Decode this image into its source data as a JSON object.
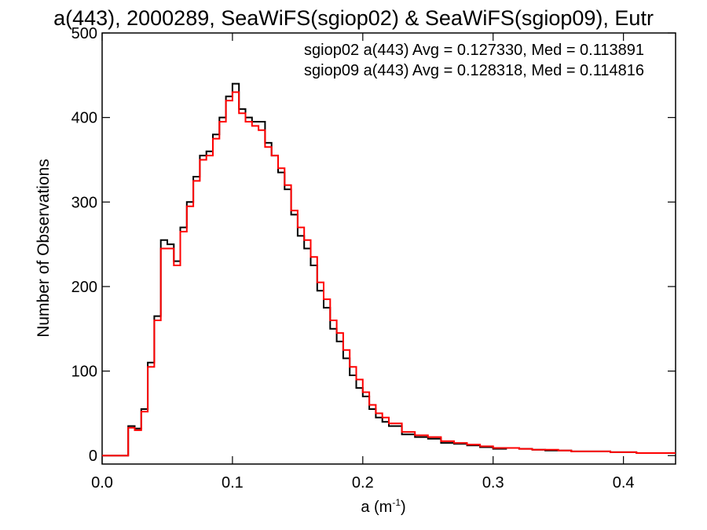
{
  "chart_data": {
    "type": "line",
    "title": "a(443), 2000289, SeaWiFS(sgiop02) & SeaWiFS(sgiop09), Eutr",
    "xlabel": "a (m",
    "xlabel_superscript": "-1",
    "xlabel_suffix": ")",
    "ylabel": "Number of Observations",
    "xlim": [
      0.0,
      0.44
    ],
    "ylim": [
      -10,
      500
    ],
    "xticks": [
      0.0,
      0.1,
      0.2,
      0.3,
      0.4
    ],
    "xtick_labels": [
      "0.0",
      "0.1",
      "0.2",
      "0.3",
      "0.4"
    ],
    "yticks": [
      0,
      100,
      200,
      300,
      400,
      500
    ],
    "ytick_labels": [
      "0",
      "100",
      "200",
      "300",
      "400",
      "500"
    ],
    "legend_position": "top-right",
    "series": [
      {
        "name": "sgiop02",
        "color": "#000000",
        "stats_label": "sgiop02 a(443) Avg = 0.127330, Med = 0.113891",
        "x": [
          0.0,
          0.01,
          0.015,
          0.02,
          0.025,
          0.03,
          0.035,
          0.04,
          0.045,
          0.05,
          0.055,
          0.06,
          0.065,
          0.07,
          0.075,
          0.08,
          0.085,
          0.09,
          0.095,
          0.1,
          0.105,
          0.11,
          0.115,
          0.12,
          0.125,
          0.13,
          0.135,
          0.14,
          0.145,
          0.15,
          0.155,
          0.16,
          0.165,
          0.17,
          0.175,
          0.18,
          0.185,
          0.19,
          0.195,
          0.2,
          0.205,
          0.21,
          0.215,
          0.22,
          0.23,
          0.24,
          0.25,
          0.26,
          0.27,
          0.28,
          0.29,
          0.3,
          0.31,
          0.32,
          0.33,
          0.34,
          0.35,
          0.36,
          0.37,
          0.38,
          0.39,
          0.4,
          0.41,
          0.42,
          0.43,
          0.44
        ],
        "y": [
          0,
          0,
          0,
          35,
          32,
          55,
          110,
          165,
          255,
          250,
          230,
          270,
          300,
          330,
          355,
          360,
          380,
          400,
          425,
          440,
          410,
          400,
          395,
          395,
          370,
          355,
          335,
          315,
          285,
          260,
          245,
          225,
          195,
          175,
          150,
          135,
          115,
          95,
          80,
          70,
          55,
          45,
          40,
          35,
          25,
          22,
          20,
          15,
          14,
          12,
          10,
          8,
          9,
          8,
          7,
          6,
          6,
          5,
          5,
          5,
          4,
          4,
          3,
          3,
          3,
          3
        ]
      },
      {
        "name": "sgiop09",
        "color": "#ff0000",
        "stats_label": "sgiop09 a(443) Avg = 0.128318, Med = 0.114816",
        "x": [
          0.0,
          0.01,
          0.015,
          0.02,
          0.025,
          0.03,
          0.035,
          0.04,
          0.045,
          0.05,
          0.055,
          0.06,
          0.065,
          0.07,
          0.075,
          0.08,
          0.085,
          0.09,
          0.095,
          0.1,
          0.105,
          0.11,
          0.115,
          0.12,
          0.125,
          0.13,
          0.135,
          0.14,
          0.145,
          0.15,
          0.155,
          0.16,
          0.165,
          0.17,
          0.175,
          0.18,
          0.185,
          0.19,
          0.195,
          0.2,
          0.205,
          0.21,
          0.215,
          0.22,
          0.23,
          0.24,
          0.25,
          0.26,
          0.27,
          0.28,
          0.29,
          0.3,
          0.31,
          0.32,
          0.33,
          0.34,
          0.35,
          0.36,
          0.37,
          0.38,
          0.39,
          0.4,
          0.41,
          0.42,
          0.43,
          0.44
        ],
        "y": [
          0,
          0,
          0,
          33,
          30,
          52,
          105,
          160,
          245,
          245,
          225,
          265,
          295,
          325,
          350,
          355,
          375,
          395,
          420,
          430,
          405,
          395,
          390,
          385,
          365,
          355,
          340,
          320,
          290,
          270,
          255,
          235,
          205,
          185,
          160,
          145,
          125,
          105,
          90,
          75,
          60,
          50,
          45,
          38,
          28,
          24,
          22,
          17,
          15,
          13,
          11,
          9,
          9,
          8,
          7,
          7,
          6,
          5,
          5,
          5,
          4,
          4,
          3,
          3,
          3,
          3
        ]
      }
    ]
  }
}
